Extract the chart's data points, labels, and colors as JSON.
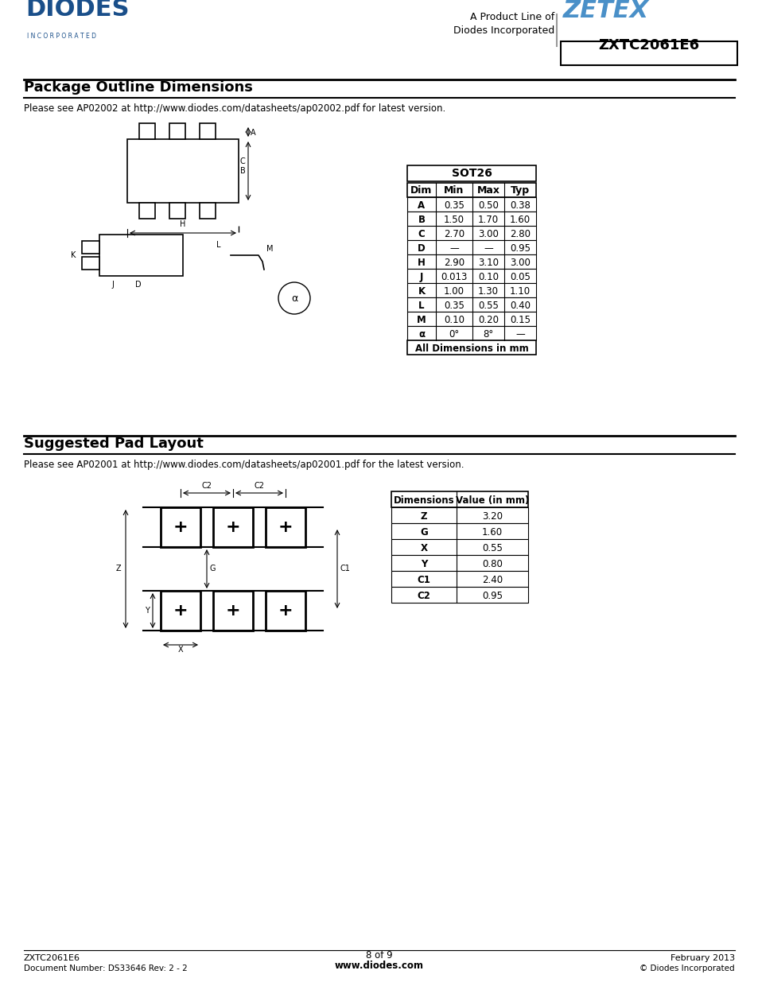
{
  "page_bg": "#ffffff",
  "title_text": "ZXTC2061E6",
  "header_product_line": "A Product Line of",
  "header_diodes_inc": "Diodes Incorporated",
  "section1_title": "Package Outline Dimensions",
  "section1_note": "Please see AP02002 at http://www.diodes.com/datasheets/ap02002.pdf for latest version.",
  "sot26_table_title": "SOT26",
  "sot26_headers": [
    "Dim",
    "Min",
    "Max",
    "Typ"
  ],
  "sot26_rows": [
    [
      "A",
      "0.35",
      "0.50",
      "0.38"
    ],
    [
      "B",
      "1.50",
      "1.70",
      "1.60"
    ],
    [
      "C",
      "2.70",
      "3.00",
      "2.80"
    ],
    [
      "D",
      "—",
      "—",
      "0.95"
    ],
    [
      "H",
      "2.90",
      "3.10",
      "3.00"
    ],
    [
      "J",
      "0.013",
      "0.10",
      "0.05"
    ],
    [
      "K",
      "1.00",
      "1.30",
      "1.10"
    ],
    [
      "L",
      "0.35",
      "0.55",
      "0.40"
    ],
    [
      "M",
      "0.10",
      "0.20",
      "0.15"
    ],
    [
      "α",
      "0°",
      "8°",
      "—"
    ]
  ],
  "sot26_footer": "All Dimensions in mm",
  "section2_title": "Suggested Pad Layout",
  "section2_note": "Please see AP02001 at http://www.diodes.com/datasheets/ap02001.pdf for the latest version.",
  "pad_table_headers": [
    "Dimensions",
    "Value (in mm)"
  ],
  "pad_table_rows": [
    [
      "Z",
      "3.20"
    ],
    [
      "G",
      "1.60"
    ],
    [
      "X",
      "0.55"
    ],
    [
      "Y",
      "0.80"
    ],
    [
      "C1",
      "2.40"
    ],
    [
      "C2",
      "0.95"
    ]
  ],
  "footer_left1": "ZXTC2061E6",
  "footer_left2": "Document Number: DS33646 Rev: 2 - 2",
  "footer_center": "8 of 9",
  "footer_center2": "www.diodes.com",
  "footer_right1": "February 2013",
  "footer_right2": "© Diodes Incorporated",
  "diodes_blue": "#1a4f8a",
  "zetex_blue": "#4a90c8",
  "black": "#000000",
  "table_border": "#000000"
}
